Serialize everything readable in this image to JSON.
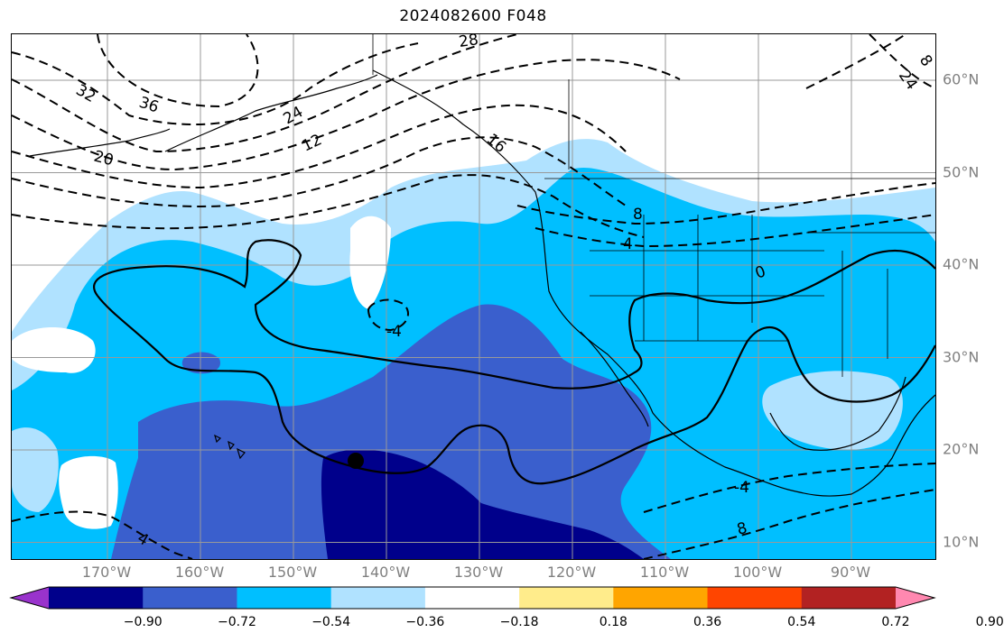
{
  "title": "2024082600 F048",
  "latitude_labels": [
    {
      "label": "60°N",
      "lat": 60
    },
    {
      "label": "50°N",
      "lat": 50
    },
    {
      "label": "40°N",
      "lat": 40
    },
    {
      "label": "30°N",
      "lat": 30
    },
    {
      "label": "20°N",
      "lat": 20
    },
    {
      "label": "10°N",
      "lat": 10
    }
  ],
  "longitude_labels": [
    {
      "label": "170°W",
      "lon": -170
    },
    {
      "label": "160°W",
      "lon": -160
    },
    {
      "label": "150°W",
      "lon": -150
    },
    {
      "label": "140°W",
      "lon": -140
    },
    {
      "label": "130°W",
      "lon": -130
    },
    {
      "label": "120°W",
      "lon": -120
    },
    {
      "label": "110°W",
      "lon": -110
    },
    {
      "label": "100°W",
      "lon": -100
    },
    {
      "label": "90°W",
      "lon": -90
    }
  ],
  "contour_labels": [
    "28",
    "32",
    "36",
    "24",
    "20",
    "12",
    "16",
    "8",
    "4",
    "0",
    "-4",
    "4",
    "-4",
    "8",
    "24",
    "8"
  ],
  "colorbar": {
    "tick_labels": [
      "−0.90",
      "−0.72",
      "−0.54",
      "−0.36",
      "−0.18",
      "0.18",
      "0.36",
      "0.54",
      "0.72",
      "0.90"
    ],
    "colors": [
      "#9933cc",
      "#00008b",
      "#3a5fcd",
      "#00bfff",
      "#b0e2ff",
      "#ffffff",
      "#ffec8b",
      "#ffa500",
      "#ff4500",
      "#b22222",
      "#ff88b0"
    ]
  },
  "marker": {
    "name": "storm-center-marker",
    "color": "#000000"
  }
}
